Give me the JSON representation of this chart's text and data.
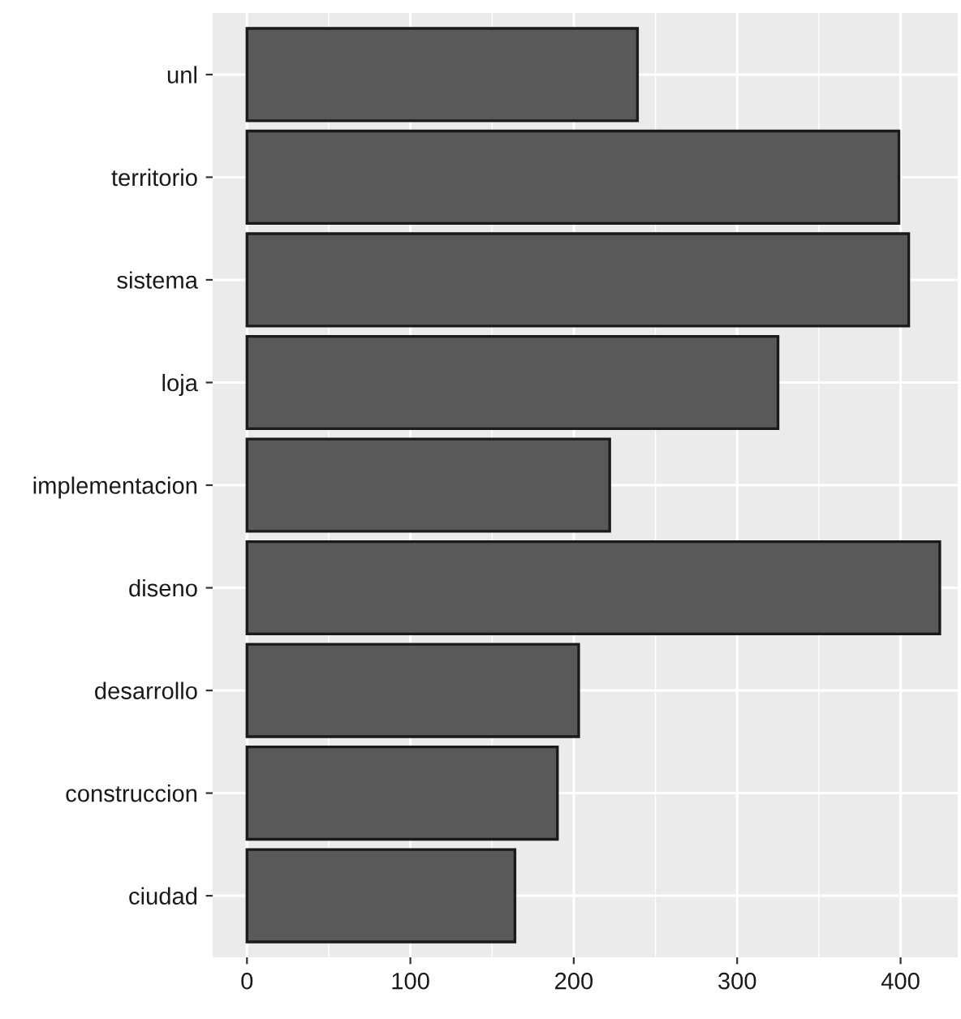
{
  "chart_data": {
    "type": "bar",
    "orientation": "horizontal",
    "categories": [
      "unl",
      "territorio",
      "sistema",
      "loja",
      "implementacion",
      "diseno",
      "desarrollo",
      "construccion",
      "ciudad"
    ],
    "values": [
      239,
      399,
      405,
      325,
      222,
      424,
      203,
      190,
      164
    ],
    "color": "#595959",
    "xlim": [
      -21,
      435
    ],
    "xticks": [
      0,
      100,
      200,
      300,
      400
    ],
    "grid": true,
    "legend": false
  }
}
